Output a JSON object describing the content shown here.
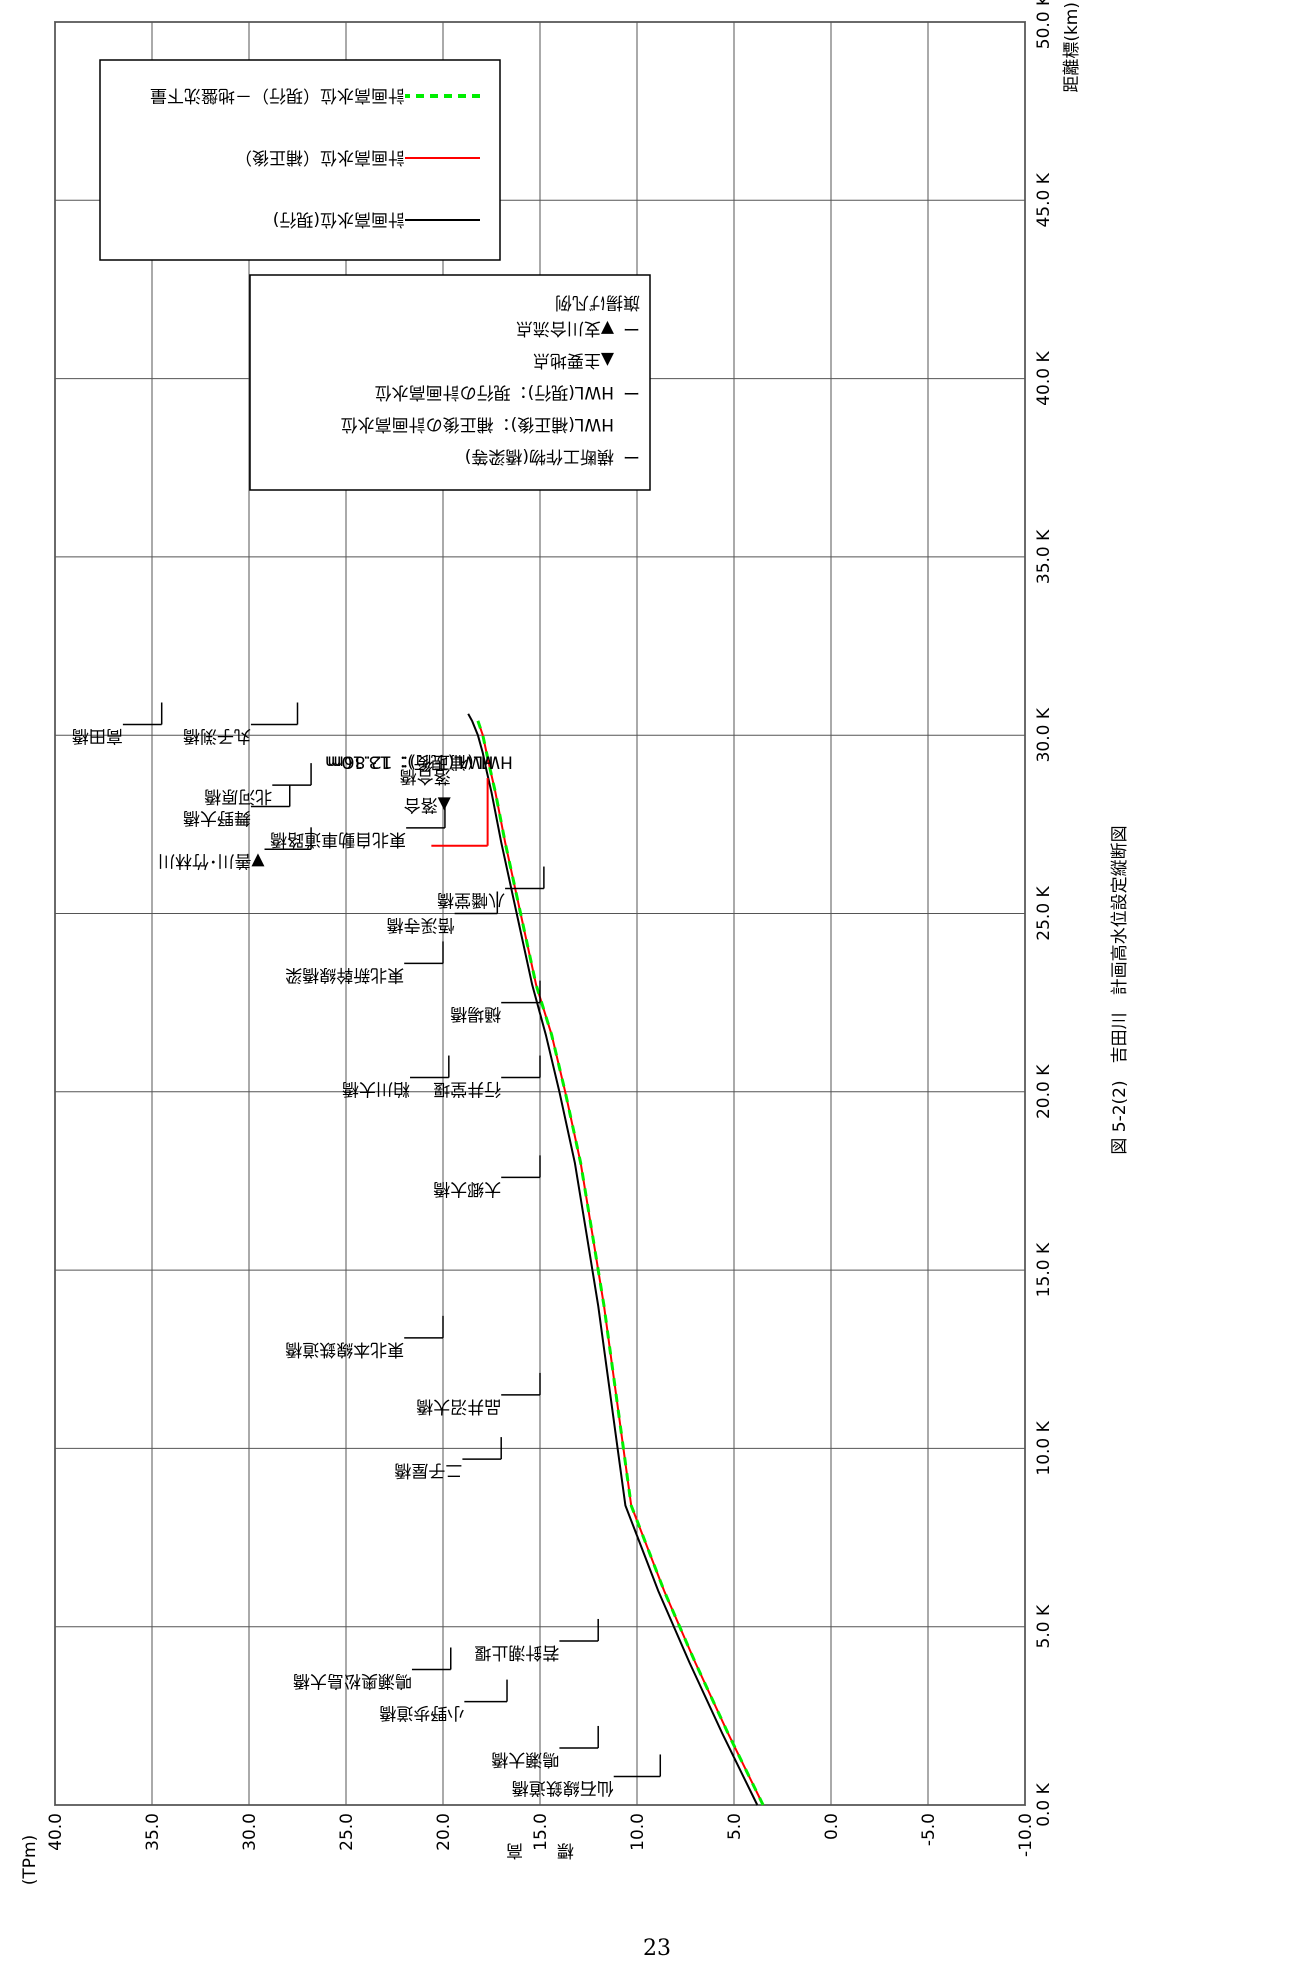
{
  "chart_data": {
    "type": "line",
    "title": "図 5-2(2)　吉田川　計画高水位設定縦断図",
    "xlabel": "距離標(km)",
    "ylabel": "標　　高",
    "yunit": "(TPm)",
    "xlim": [
      0,
      50
    ],
    "ylim": [
      -10,
      40
    ],
    "x_ticks": [
      0,
      5,
      10,
      15,
      20,
      25,
      30,
      35,
      40,
      45,
      50
    ],
    "x_tick_labels": [
      "0.0 K",
      "5.0 K",
      "10.0 K",
      "15.0 K",
      "20.0 K",
      "25.0 K",
      "30.0 K",
      "35.0 K",
      "40.0 K",
      "45.0 K",
      "50.0 K"
    ],
    "y_ticks": [
      -10,
      -5,
      0,
      5,
      10,
      15,
      20,
      25,
      30,
      35,
      40
    ],
    "y_tick_labels": [
      "-10.0",
      "-5.0",
      "0.0",
      "5.0",
      "10.0",
      "15.0",
      "20.0",
      "25.0",
      "30.0",
      "35.0",
      "40.0"
    ],
    "grid": true,
    "series": [
      {
        "name": "計画高水位(現行)",
        "color": "#000000",
        "x": [
          0,
          2,
          4,
          6,
          8.4,
          10,
          12,
          14,
          16,
          18,
          20,
          21.6,
          23,
          25,
          27,
          28.4,
          29,
          29.5,
          30,
          30.4,
          30.6
        ],
        "y": [
          3.8,
          5.6,
          7.3,
          8.9,
          10.6,
          11.0,
          11.5,
          12.0,
          12.6,
          13.2,
          14.0,
          14.7,
          15.4,
          16.2,
          17.0,
          17.5,
          17.75,
          17.95,
          18.2,
          18.5,
          18.7
        ]
      },
      {
        "name": "計画高水位（補正後）",
        "color": "#ff0000",
        "x": [
          0,
          2,
          4,
          6,
          8.4,
          10,
          12,
          14,
          16,
          18,
          20,
          21.6,
          23,
          25,
          27,
          28.4,
          29,
          29.5,
          30,
          30.4
        ],
        "y": [
          3.5,
          5.3,
          7.0,
          8.6,
          10.3,
          10.7,
          11.2,
          11.7,
          12.3,
          12.9,
          13.7,
          14.4,
          15.2,
          16.0,
          16.8,
          17.3,
          17.55,
          17.75,
          17.95,
          18.2
        ]
      },
      {
        "name": "計画高水位（現行）－地盤沈下量",
        "color": "#00ee00",
        "dash": true,
        "x": [
          0,
          2,
          4,
          6,
          8.4,
          10,
          12,
          14,
          16,
          18,
          20,
          21.6,
          23,
          25,
          27,
          28.4,
          29,
          29.5,
          30,
          30.4
        ],
        "y": [
          3.5,
          5.3,
          7.0,
          8.6,
          10.3,
          10.7,
          11.2,
          11.7,
          12.3,
          12.9,
          13.7,
          14.4,
          15.2,
          16.0,
          16.8,
          17.3,
          17.55,
          17.75,
          17.95,
          18.2
        ]
      }
    ],
    "flags": [
      {
        "x": 0.8,
        "base": 8.8,
        "top": 11.2,
        "label": "仙石線鉄道橋"
      },
      {
        "x": 1.6,
        "base": 12.0,
        "top": 14.0,
        "label": "鳴瀬大橋"
      },
      {
        "x": 2.9,
        "base": 16.7,
        "top": 18.9,
        "label": "小野歩道橋"
      },
      {
        "x": 3.8,
        "base": 19.6,
        "top": 21.6,
        "label": "鳴瀬奥松島大橋"
      },
      {
        "x": 4.6,
        "base": 12.0,
        "top": 14.0,
        "label": "若針潮止堰"
      },
      {
        "x": 9.7,
        "base": 17.0,
        "top": 19.0,
        "label": "二子屋橋"
      },
      {
        "x": 11.5,
        "base": 15.0,
        "top": 17.0,
        "label": "品井沼大橋"
      },
      {
        "x": 13.1,
        "base": 20.0,
        "top": 22.0,
        "label": "東北本線鉄道橋"
      },
      {
        "x": 17.6,
        "base": 15.0,
        "top": 17.0,
        "label": "大郷大橋"
      },
      {
        "x": 20.4,
        "base": 15.0,
        "top": 17.0,
        "label": "行井堂堰"
      },
      {
        "x": 20.4,
        "base": 19.7,
        "top": 21.7,
        "label": "粕川大橋"
      },
      {
        "x": 22.5,
        "base": 15.0,
        "top": 17.0,
        "label": "樋場橋"
      },
      {
        "x": 23.6,
        "base": 20.0,
        "top": 22.0,
        "label": "東北新幹線橋梁"
      },
      {
        "x": 25.0,
        "base": 17.2,
        "top": 19.4,
        "label": "悟渓寺橋"
      },
      {
        "x": 25.7,
        "base": 14.8,
        "top": 16.8,
        "label": "八幡堂橋"
      },
      {
        "x": 26.8,
        "base": 26.8,
        "top": 29.2,
        "label": "▼善川･竹林川"
      },
      {
        "x": 27.4,
        "base": 19.9,
        "top": 21.9,
        "label": "東北自動車道路橋"
      },
      {
        "x": 28.0,
        "base": 27.9,
        "top": 29.9,
        "label": "舞野大橋"
      },
      {
        "x": 28.6,
        "base": 26.8,
        "top": 28.8,
        "label": "北河原橋"
      },
      {
        "x": 30.3,
        "base": 27.5,
        "top": 29.9,
        "label": "丸子渕橋"
      },
      {
        "x": 30.3,
        "base": 34.5,
        "top": 36.5,
        "label": "高田橋"
      }
    ],
    "annotations": [
      {
        "text": "▲落合",
        "x": 28.2,
        "y": 19.6
      },
      {
        "text": "落合橋",
        "x": 29.0,
        "y": 19.6
      },
      {
        "text": "HWL(現行)：13.10m",
        "x": 29.4,
        "y": 17.4
      },
      {
        "text": "HWL(補正後)：12.86m",
        "x": 29.4,
        "y": 16.4
      }
    ],
    "hwl_marker": {
      "x": 26.9,
      "y1": 17.7,
      "y2": 20.6,
      "color": "#ff0000"
    },
    "legend": {
      "position": "top-right",
      "items": [
        {
          "label": "計画高水位(現行)",
          "color": "#000000",
          "style": "solid"
        },
        {
          "label": "計画高水位（補正後）",
          "color": "#ff0000",
          "style": "solid"
        },
        {
          "label": "計画高水位（現行）－地盤沈下量",
          "color": "#00ee00",
          "style": "dashed"
        }
      ]
    },
    "flag_legend": {
      "title": "旗揚げ凡例",
      "items": [
        {
          "symbol": "ー",
          "color": "#000000",
          "text": "▼支川合流点"
        },
        {
          "symbol": "",
          "color": "#000000",
          "text": "▲主要地点"
        },
        {
          "symbol": "ー",
          "color": "#ff00ff",
          "text": "HWL(現行)：現行の計画高水位"
        },
        {
          "symbol": "",
          "color": "#000000",
          "text": "HWL(補正後)：補正後の計画高水位"
        },
        {
          "symbol": "ー",
          "color": "#000000",
          "text": "横断工作物(橋梁等)"
        }
      ]
    }
  },
  "page_number": "23"
}
